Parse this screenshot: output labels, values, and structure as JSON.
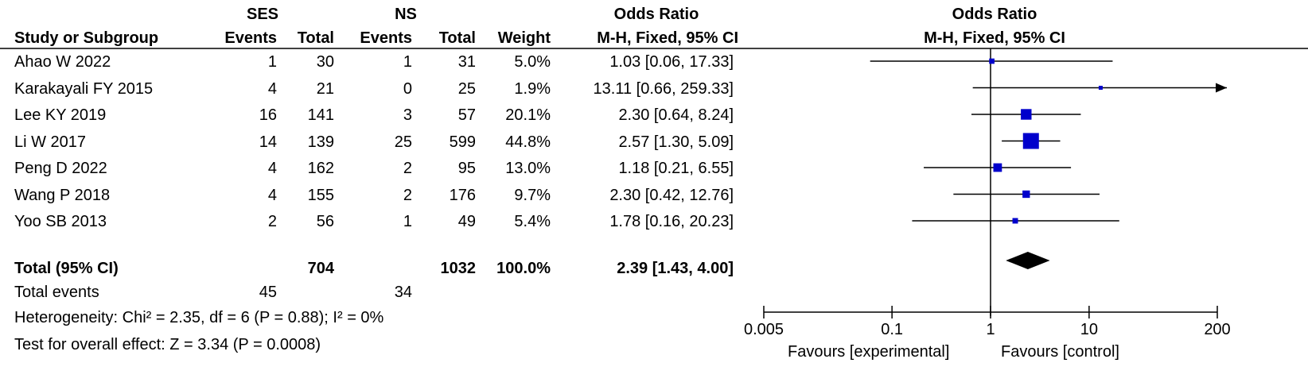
{
  "headers": {
    "exp_group": "SES",
    "ctrl_group": "NS",
    "or_title": "Odds Ratio",
    "or_method": "M-H, Fixed, 95% CI",
    "study": "Study or Subgroup",
    "events": "Events",
    "total": "Total",
    "weight": "Weight",
    "plot_title": "Odds Ratio",
    "plot_method": "M-H, Fixed, 95% CI"
  },
  "summary": {
    "label": "Total (95% CI)",
    "exp_total": "704",
    "ctrl_total": "1032",
    "weight": "100.0%",
    "ci_text": "2.39 [1.43, 4.00]"
  },
  "total_events": {
    "label": "Total events",
    "exp": "45",
    "ctrl": "34"
  },
  "heterogeneity": "Heterogeneity: Chi² = 2.35, df = 6 (P = 0.88); I² = 0%",
  "overall_effect": "Test for overall effect: Z = 3.34 (P = 0.0008)",
  "axis_footer": {
    "left": "Favours [experimental]",
    "right": "Favours [control]"
  },
  "chart_data": {
    "type": "forest",
    "scale": "log",
    "xlim": [
      0.005,
      200
    ],
    "ticks": [
      {
        "value": 0.005,
        "label": "0.005"
      },
      {
        "value": 0.1,
        "label": "0.1"
      },
      {
        "value": 1,
        "label": "1"
      },
      {
        "value": 10,
        "label": "10"
      },
      {
        "value": 200,
        "label": "200"
      }
    ],
    "marker_color": "#0000cc",
    "studies": [
      {
        "name": "Ahao W 2022",
        "exp_events": "1",
        "exp_total": "30",
        "ctrl_events": "1",
        "ctrl_total": "31",
        "weight": "5.0%",
        "weight_pct": 5.0,
        "or": 1.03,
        "lo": 0.06,
        "hi": 17.33,
        "ci_text": "1.03 [0.06, 17.33]"
      },
      {
        "name": "Karakayali FY 2015",
        "exp_events": "4",
        "exp_total": "21",
        "ctrl_events": "0",
        "ctrl_total": "25",
        "weight": "1.9%",
        "weight_pct": 1.9,
        "or": 13.11,
        "lo": 0.66,
        "hi": 259.33,
        "ci_text": "13.11 [0.66, 259.33]"
      },
      {
        "name": "Lee KY 2019",
        "exp_events": "16",
        "exp_total": "141",
        "ctrl_events": "3",
        "ctrl_total": "57",
        "weight": "20.1%",
        "weight_pct": 20.1,
        "or": 2.3,
        "lo": 0.64,
        "hi": 8.24,
        "ci_text": "2.30 [0.64, 8.24]"
      },
      {
        "name": "Li W 2017",
        "exp_events": "14",
        "exp_total": "139",
        "ctrl_events": "25",
        "ctrl_total": "599",
        "weight": "44.8%",
        "weight_pct": 44.8,
        "or": 2.57,
        "lo": 1.3,
        "hi": 5.09,
        "ci_text": "2.57 [1.30, 5.09]"
      },
      {
        "name": "Peng D 2022",
        "exp_events": "4",
        "exp_total": "162",
        "ctrl_events": "2",
        "ctrl_total": "95",
        "weight": "13.0%",
        "weight_pct": 13.0,
        "or": 1.18,
        "lo": 0.21,
        "hi": 6.55,
        "ci_text": "1.18 [0.21, 6.55]"
      },
      {
        "name": "Wang P 2018",
        "exp_events": "4",
        "exp_total": "155",
        "ctrl_events": "2",
        "ctrl_total": "176",
        "weight": "9.7%",
        "weight_pct": 9.7,
        "or": 2.3,
        "lo": 0.42,
        "hi": 12.76,
        "ci_text": "2.30 [0.42, 12.76]"
      },
      {
        "name": "Yoo SB 2013",
        "exp_events": "2",
        "exp_total": "56",
        "ctrl_events": "1",
        "ctrl_total": "49",
        "weight": "5.4%",
        "weight_pct": 5.4,
        "or": 1.78,
        "lo": 0.16,
        "hi": 20.23,
        "ci_text": "1.78 [0.16, 20.23]"
      }
    ],
    "pooled": {
      "or": 2.39,
      "lo": 1.43,
      "hi": 4.0
    }
  }
}
